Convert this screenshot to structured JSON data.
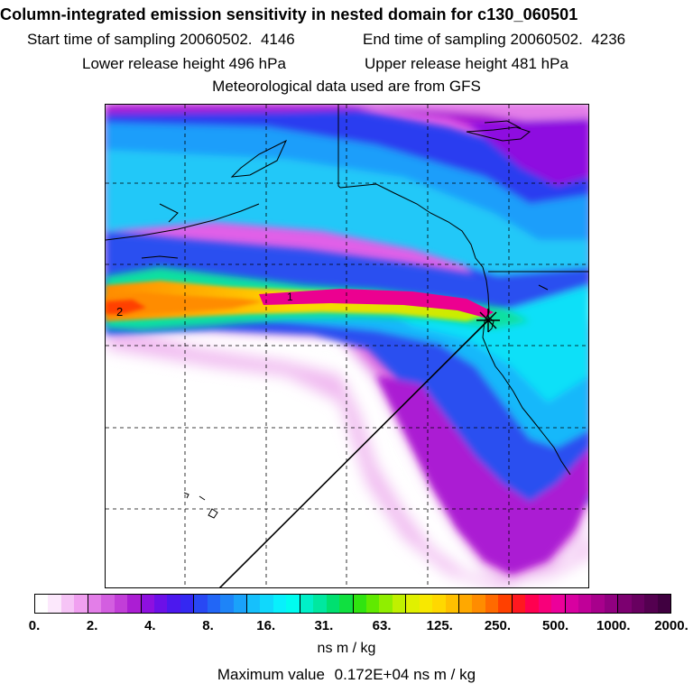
{
  "header": {
    "title": "Column-integrated emission sensitivity in nested domain for c130_060501",
    "start_label": "Start time of sampling",
    "start_value": "20060502.  4146",
    "end_label": "End time of sampling",
    "end_value": "20060502.  4236",
    "lower_label": "Lower release height",
    "lower_value": "496 hPa",
    "upper_label": "Upper release height",
    "upper_value": "481 hPa",
    "met_note": "Meteorological data used are from GFS"
  },
  "map": {
    "contour_labels": [
      "1",
      "2"
    ],
    "release_marker": "star",
    "grid": "dashed"
  },
  "colorbar": {
    "ticks": [
      "0.",
      "2.",
      "4.",
      "8.",
      "16.",
      "31.",
      "63.",
      "125.",
      "250.",
      "500.",
      "1000.",
      "2000."
    ],
    "unit": "ns m / kg",
    "segments": [
      [
        "#ffffff",
        "#fce8fc",
        "#f6c4f6",
        "#f0a0f0"
      ],
      [
        "#e37ee8",
        "#d35ee0",
        "#c23ed8",
        "#ab1ed3"
      ],
      [
        "#8e10e0",
        "#6c10e8",
        "#4c18ee",
        "#3428f2"
      ],
      [
        "#2848f4",
        "#2266f6",
        "#1e84f8",
        "#1aa2fa"
      ],
      [
        "#16c0fc",
        "#10d8fc",
        "#08f0fc",
        "#00fcf0"
      ],
      [
        "#00f0c8",
        "#00e8a0",
        "#00e070",
        "#10e040"
      ],
      [
        "#30e410",
        "#60ea00",
        "#90ee00",
        "#c0f000"
      ],
      [
        "#e0f000",
        "#f8e800",
        "#ffd800",
        "#ffc000"
      ],
      [
        "#ffa800",
        "#ff8c00",
        "#ff6a00",
        "#ff4000"
      ],
      [
        "#ff1820",
        "#ff0050",
        "#f8007a",
        "#ec009a"
      ],
      [
        "#d800a0",
        "#c00098",
        "#a8008c",
        "#900080"
      ],
      [
        "#7c0070",
        "#680060",
        "#540050",
        "#400040"
      ]
    ]
  },
  "footer": {
    "max_label": "Maximum value",
    "max_value": "0.172E+04",
    "max_unit": "ns m / kg"
  }
}
